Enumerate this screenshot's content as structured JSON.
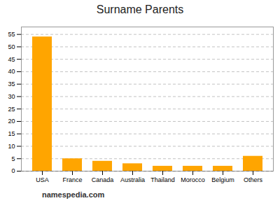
{
  "chart_data": {
    "type": "bar",
    "title": "Surname Parents",
    "categories": [
      "USA",
      "France",
      "Canada",
      "Australia",
      "Thailand",
      "Morocco",
      "Belgium",
      "Others"
    ],
    "values": [
      54,
      5,
      4,
      3,
      2,
      2,
      2,
      6
    ],
    "color": "#FFA500",
    "ylim": [
      0,
      58
    ],
    "yticks": [
      0,
      5,
      10,
      15,
      20,
      25,
      30,
      35,
      40,
      45,
      50,
      55
    ],
    "grid": true,
    "annotations": [
      "namespedia.com"
    ]
  }
}
